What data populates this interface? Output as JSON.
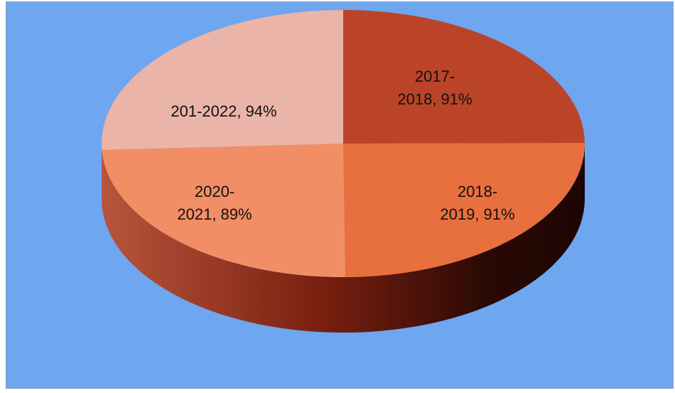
{
  "colors": {
    "background": "#6ea6f0",
    "border": "#8e9fb8"
  },
  "chart_data": {
    "type": "pie",
    "title": "",
    "style": "3d",
    "categories": [
      "2017-2018",
      "2018-2019",
      "2020-2021",
      "201-2022"
    ],
    "values": [
      91,
      91,
      89,
      94
    ],
    "labels": [
      {
        "lines": [
          "2017-",
          "2018, 91%"
        ]
      },
      {
        "lines": [
          "2018-",
          "2019, 91%"
        ]
      },
      {
        "lines": [
          "2020-",
          "2021, 89%"
        ]
      },
      {
        "lines": [
          "201-2022, 94%"
        ]
      }
    ],
    "slice_colors": [
      "#bb4428",
      "#e8703e",
      "#f28e66",
      "#ebb4a8"
    ],
    "legend": "none"
  }
}
